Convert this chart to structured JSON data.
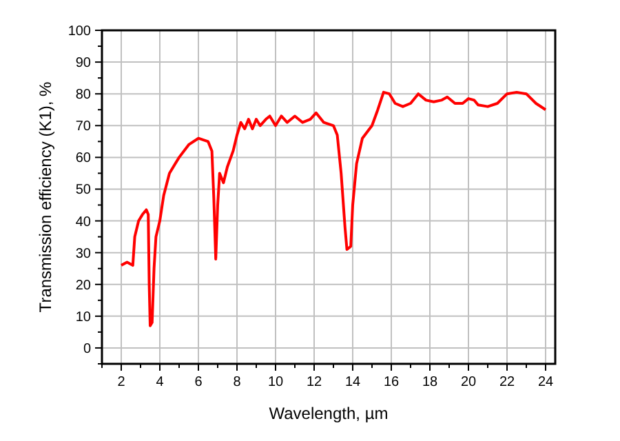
{
  "chart_data": {
    "type": "line",
    "xlabel": "Wavelength, µm",
    "ylabel": "Transmission efficiency (K1), %",
    "x": [
      2,
      2.3,
      2.6,
      2.7,
      2.9,
      3.1,
      3.3,
      3.4,
      3.45,
      3.5,
      3.6,
      3.7,
      3.8,
      4.0,
      4.2,
      4.5,
      5,
      5.5,
      6,
      6.5,
      6.7,
      6.8,
      6.9,
      7.0,
      7.1,
      7.3,
      7.5,
      7.8,
      8.0,
      8.2,
      8.4,
      8.6,
      8.8,
      9.0,
      9.2,
      9.5,
      9.7,
      10,
      10.3,
      10.6,
      11,
      11.4,
      11.8,
      12.1,
      12.5,
      13,
      13.2,
      13.4,
      13.6,
      13.7,
      13.9,
      14.0,
      14.2,
      14.5,
      15,
      15.3,
      15.6,
      15.9,
      16.2,
      16.6,
      17.0,
      17.4,
      17.8,
      18.2,
      18.6,
      18.9,
      19.3,
      19.7,
      20.0,
      20.3,
      20.5,
      21,
      21.5,
      22,
      22.5,
      23,
      23.5,
      24
    ],
    "series": [
      {
        "color": "#ff0000",
        "values": [
          26,
          27,
          26,
          35,
          40,
          42,
          43.5,
          42,
          20,
          7,
          8,
          25,
          35,
          40,
          48,
          55,
          60,
          64,
          66,
          65,
          62,
          47,
          28,
          45,
          55,
          52,
          57,
          62,
          67,
          71,
          69,
          72,
          69,
          72,
          70,
          72,
          73,
          70,
          73,
          71,
          73,
          71,
          72,
          74,
          71,
          70,
          67,
          55,
          38,
          31,
          32,
          45,
          58,
          66,
          70,
          75,
          80.5,
          80,
          77,
          76,
          77,
          80,
          78,
          77.5,
          78,
          79,
          77,
          77,
          78.5,
          78,
          76.5,
          76,
          77,
          80,
          80.5,
          80,
          77,
          75
        ]
      }
    ],
    "xlim": [
      1,
      24.5
    ],
    "ylim": [
      -5,
      100
    ],
    "xticks": [
      {
        "value": 1,
        "label": null
      },
      2,
      {
        "value": 3,
        "label": null
      },
      4,
      {
        "value": 5,
        "label": null
      },
      6,
      {
        "value": 7,
        "label": null
      },
      8,
      {
        "value": 9,
        "label": null
      },
      10,
      {
        "value": 11,
        "label": null
      },
      12,
      {
        "value": 13,
        "label": null
      },
      14,
      {
        "value": 15,
        "label": null
      },
      16,
      {
        "value": 17,
        "label": null
      },
      18,
      {
        "value": 19,
        "label": null
      },
      20,
      {
        "value": 21,
        "label": null
      },
      22,
      {
        "value": 23,
        "label": null
      },
      24
    ],
    "yticks": [
      {
        "value": -5,
        "label": null
      },
      0,
      {
        "value": 5,
        "label": null
      },
      10,
      {
        "value": 15,
        "label": null
      },
      20,
      {
        "value": 25,
        "label": null
      },
      30,
      {
        "value": 35,
        "label": null
      },
      40,
      {
        "value": 45,
        "label": null
      },
      50,
      {
        "value": 55,
        "label": null
      },
      60,
      {
        "value": 65,
        "label": null
      },
      70,
      {
        "value": 75,
        "label": null
      },
      80,
      {
        "value": 85,
        "label": null
      },
      90,
      {
        "value": 95,
        "label": null
      },
      100
    ],
    "grid": true,
    "line_style": "solid",
    "marker": "none"
  }
}
